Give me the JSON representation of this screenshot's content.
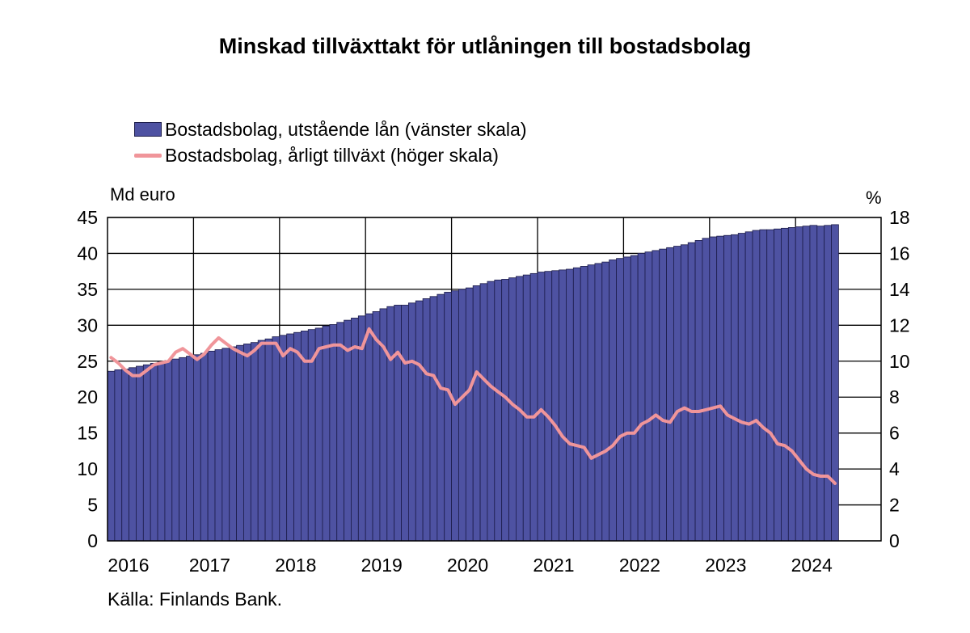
{
  "chart_data": {
    "type": "bar",
    "title": "Minskad tillväxttakt för utlåningen till bostadsbolag",
    "source": "Källa: Finlands Bank.",
    "ylabel_left": "Md euro",
    "ylabel_right": "%",
    "ylim_left": [
      0,
      45
    ],
    "ylim_right": [
      0,
      18
    ],
    "yticks_left": [
      "0",
      "5",
      "10",
      "15",
      "20",
      "25",
      "30",
      "35",
      "40",
      "45"
    ],
    "yticks_right": [
      "0",
      "2",
      "4",
      "6",
      "8",
      "10",
      "12",
      "14",
      "16",
      "18"
    ],
    "x_labels": [
      "2016",
      "2017",
      "2018",
      "2019",
      "2020",
      "2021",
      "2022",
      "2023",
      "2024"
    ],
    "grid": true,
    "legend_position": "top-left",
    "series": [
      {
        "name": "Bostadsbolag, utstående lån (vänster skala)",
        "type": "bar",
        "axis": "left",
        "color": "#4e52a2",
        "values": [
          23.6,
          23.8,
          23.9,
          24.1,
          24.3,
          24.5,
          24.7,
          24.9,
          25.1,
          25.3,
          25.5,
          25.7,
          25.9,
          26.1,
          26.4,
          26.6,
          26.8,
          27.0,
          27.2,
          27.4,
          27.6,
          27.9,
          28.1,
          28.4,
          28.6,
          28.8,
          29.0,
          29.2,
          29.4,
          29.6,
          29.9,
          30.1,
          30.4,
          30.7,
          31.0,
          31.3,
          31.6,
          31.9,
          32.3,
          32.6,
          32.8,
          32.8,
          33.1,
          33.4,
          33.7,
          34.0,
          34.3,
          34.6,
          34.8,
          35.0,
          35.2,
          35.5,
          35.8,
          36.1,
          36.3,
          36.4,
          36.6,
          36.8,
          37.0,
          37.2,
          37.4,
          37.5,
          37.6,
          37.7,
          37.8,
          38.0,
          38.2,
          38.4,
          38.6,
          38.8,
          39.1,
          39.3,
          39.5,
          39.7,
          40.0,
          40.2,
          40.4,
          40.6,
          40.8,
          41.0,
          41.2,
          41.5,
          41.8,
          42.1,
          42.3,
          42.4,
          42.5,
          42.6,
          42.8,
          43.0,
          43.2,
          43.3,
          43.3,
          43.4,
          43.5,
          43.6,
          43.7,
          43.8,
          43.9,
          43.8,
          43.9,
          44.0
        ]
      },
      {
        "name": "Bostadsbolag, årligt tillväxt (höger skala)",
        "type": "line",
        "axis": "right",
        "color": "#f0959a",
        "values": [
          10.2,
          9.9,
          9.5,
          9.2,
          9.2,
          9.5,
          9.8,
          9.9,
          10.0,
          10.5,
          10.7,
          10.4,
          10.1,
          10.4,
          10.9,
          11.3,
          11.0,
          10.7,
          10.5,
          10.3,
          10.6,
          11.0,
          11.0,
          11.0,
          10.3,
          10.7,
          10.5,
          10.0,
          10.0,
          10.7,
          10.8,
          10.9,
          10.9,
          10.6,
          10.8,
          10.7,
          11.8,
          11.2,
          10.8,
          10.1,
          10.5,
          9.9,
          10.0,
          9.8,
          9.3,
          9.2,
          8.5,
          8.4,
          7.6,
          8.0,
          8.4,
          9.4,
          9.0,
          8.6,
          8.3,
          8.0,
          7.6,
          7.3,
          6.9,
          6.9,
          7.3,
          6.9,
          6.4,
          5.8,
          5.4,
          5.3,
          5.2,
          4.6,
          4.8,
          5.0,
          5.3,
          5.8,
          6.0,
          6.0,
          6.5,
          6.7,
          7.0,
          6.7,
          6.6,
          7.2,
          7.4,
          7.2,
          7.2,
          7.3,
          7.4,
          7.5,
          7.0,
          6.8,
          6.6,
          6.5,
          6.7,
          6.3,
          6.0,
          5.4,
          5.3,
          5.0,
          4.5,
          4.0,
          3.7,
          3.6,
          3.6,
          3.2
        ]
      }
    ]
  }
}
